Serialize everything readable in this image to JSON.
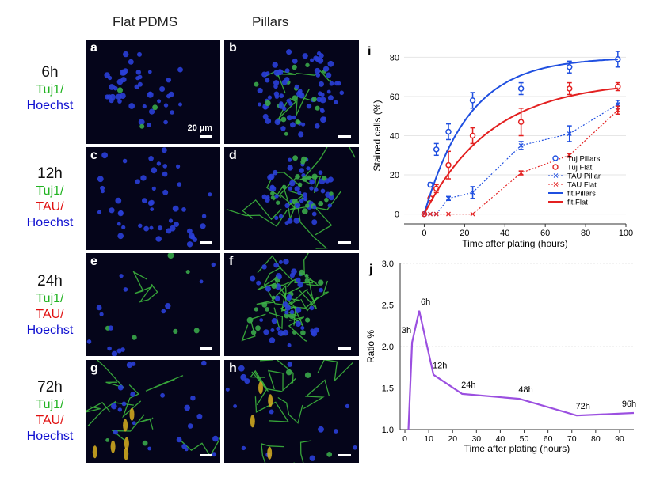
{
  "column_headers": [
    "Flat PDMS",
    "Pillars"
  ],
  "rows": [
    {
      "time": "6h",
      "stains": [
        {
          "text": "Tuj1/",
          "color": "green"
        },
        {
          "text": "Hoechst",
          "color": "blue"
        }
      ]
    },
    {
      "time": "12h",
      "stains": [
        {
          "text": "Tuj1/",
          "color": "green"
        },
        {
          "text": "TAU/",
          "color": "red"
        },
        {
          "text": "Hoechst",
          "color": "blue"
        }
      ]
    },
    {
      "time": "24h",
      "stains": [
        {
          "text": "Tuj1/",
          "color": "green"
        },
        {
          "text": "TAU/",
          "color": "red"
        },
        {
          "text": "Hoechst",
          "color": "blue"
        }
      ]
    },
    {
      "time": "72h",
      "stains": [
        {
          "text": "Tuj1/",
          "color": "green"
        },
        {
          "text": "TAU/",
          "color": "red"
        },
        {
          "text": "Hoechst",
          "color": "blue"
        }
      ]
    }
  ],
  "panel_letters": [
    "a",
    "b",
    "c",
    "d",
    "e",
    "f",
    "g",
    "h"
  ],
  "scale_bar_label": "20 µm",
  "colors": {
    "pillars": "#1f4fe0",
    "flat": "#e32020",
    "ratio": "#9b4fe0",
    "green": "#22b322",
    "red": "#e01010",
    "blue": "#1010d0"
  },
  "chart_data": [
    {
      "panel": "i",
      "type": "line",
      "xlabel": "Time after plating (hours)",
      "ylabel": "Stained cells (%)",
      "xlim": [
        -10,
        100
      ],
      "ylim": [
        -5,
        85
      ],
      "xticks": [
        0,
        20,
        40,
        60,
        80,
        100
      ],
      "yticks": [
        0,
        20,
        40,
        60,
        80
      ],
      "legend_position": "right",
      "series": [
        {
          "name": "Tuj Pillars",
          "kind": "markers",
          "x": [
            0,
            3,
            6,
            12,
            24,
            48,
            72,
            96
          ],
          "y": [
            0,
            15,
            33,
            42,
            58,
            64,
            75,
            79
          ],
          "err": [
            0,
            1,
            3,
            4,
            4,
            3,
            3,
            4
          ]
        },
        {
          "name": "Tuj Flat",
          "kind": "markers",
          "x": [
            0,
            3,
            6,
            12,
            24,
            48,
            72,
            96
          ],
          "y": [
            0,
            8,
            13,
            25,
            40,
            47,
            64,
            65
          ],
          "err": [
            0,
            1,
            2,
            7,
            4,
            7,
            3,
            2
          ]
        },
        {
          "name": "TAU Pillar",
          "kind": "dotted",
          "x": [
            0,
            3,
            6,
            12,
            24,
            48,
            72,
            96
          ],
          "y": [
            0,
            0,
            0,
            8,
            11,
            35,
            41,
            56
          ],
          "err": [
            0,
            0,
            0,
            1,
            3,
            2,
            4,
            2
          ]
        },
        {
          "name": "TAU Flat",
          "kind": "dotted",
          "x": [
            0,
            3,
            6,
            12,
            24,
            48,
            72,
            96
          ],
          "y": [
            0,
            0,
            0,
            0,
            0,
            21,
            30,
            53
          ],
          "err": [
            0,
            0,
            0,
            0,
            0,
            1,
            1,
            2
          ]
        },
        {
          "name": "fit.Pillars",
          "kind": "fit",
          "plateau": 80,
          "k": 0.045
        },
        {
          "name": "fit.Flat",
          "kind": "fit",
          "plateau": 68,
          "k": 0.03
        }
      ]
    },
    {
      "panel": "j",
      "type": "line",
      "xlabel": "Time after plating (hours)",
      "ylabel": "Ratio %",
      "xlim": [
        -2,
        96
      ],
      "ylim": [
        1.0,
        3.0
      ],
      "xticks": [
        0,
        10,
        20,
        30,
        40,
        50,
        60,
        70,
        80,
        90
      ],
      "yticks": [
        "1.0",
        "1.5",
        "2.0",
        "2.5",
        "3.0"
      ],
      "series": [
        {
          "name": "Ratio",
          "x": [
            1.5,
            3,
            6,
            12,
            24,
            48,
            72,
            96
          ],
          "y": [
            1.0,
            2.05,
            2.43,
            1.66,
            1.43,
            1.37,
            1.17,
            1.2
          ],
          "labels": [
            "",
            "3h",
            "6h",
            "12h",
            "24h",
            "48h",
            "72h",
            "96h"
          ]
        }
      ]
    }
  ]
}
